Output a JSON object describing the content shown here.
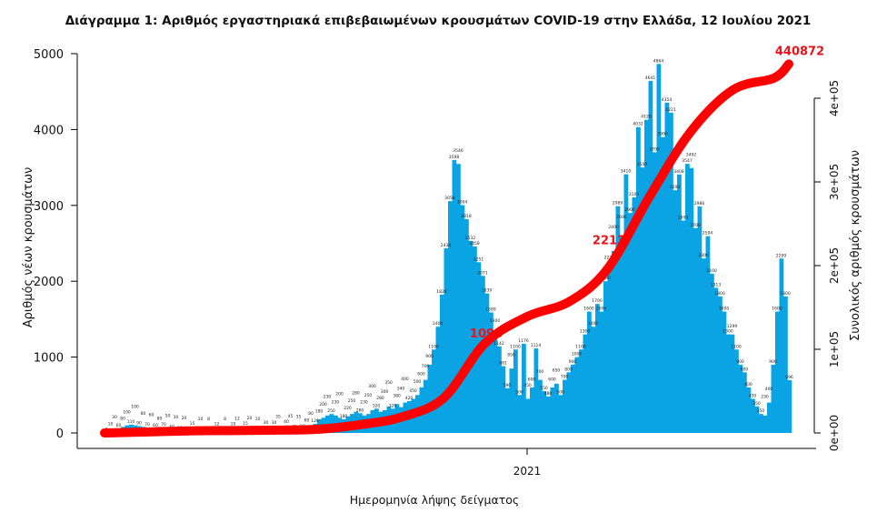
{
  "chart_data": {
    "type": "bar+line",
    "title": "Διάγραμμα 1: Αριθμός εργαστηριακά επιβεβαιωμένων κρουσμάτων COVID-19 στην Ελλάδα, 12 Ιουλίου 2021",
    "xlabel": "Ημερομηνία λήψης δείγματος",
    "ylabel": "Αριθμός νέων κρουσμάτων",
    "ylabel_right": "Συνολικός αριθμός κρουσμάτων",
    "x_start": "2020-02-26",
    "x_end": "2021-07-12",
    "x_step_days": 3,
    "x_ticks": [
      {
        "date": "2021-01-01",
        "label": "2021"
      }
    ],
    "ylim": [
      0,
      5000
    ],
    "y_ticks": [
      "0",
      "1000",
      "2000",
      "3000",
      "4000",
      "5000"
    ],
    "ylim_right": [
      0,
      400000
    ],
    "y_ticks_right": [
      "0e+00",
      "1e+05",
      "2e+05",
      "3e+05",
      "4e+05"
    ],
    "grid": false,
    "bar_color": "#0aa4e4",
    "line_color": "#ff0000",
    "bars": {
      "name": "",
      "values": [
        3,
        10,
        30,
        60,
        80,
        100,
        110,
        100,
        90,
        80,
        70,
        60,
        60,
        80,
        70,
        50,
        40,
        30,
        25,
        20,
        15,
        15,
        12,
        10,
        10,
        8,
        10,
        12,
        10,
        8,
        8,
        10,
        12,
        10,
        15,
        20,
        15,
        10,
        20,
        30,
        25,
        30,
        35,
        30,
        40,
        45,
        40,
        35,
        50,
        60,
        80,
        120,
        180,
        200,
        230,
        250,
        230,
        200,
        180,
        220,
        250,
        280,
        260,
        230,
        250,
        300,
        320,
        280,
        300,
        350,
        320,
        380,
        340,
        400,
        420,
        450,
        500,
        600,
        700,
        900,
        1100,
        1400,
        1824,
        2434,
        3056,
        3598,
        3546,
        3004,
        2818,
        2532,
        2458,
        2251,
        2071,
        1839,
        1589,
        1300,
        1142,
        881,
        590,
        850,
        1100,
        500,
        1176,
        450,
        600,
        1114,
        700,
        550,
        480,
        600,
        650,
        500,
        700,
        800,
        900,
        1000,
        1100,
        1300,
        1600,
        1400,
        1700,
        1600,
        2000,
        2274,
        2400,
        2989,
        2600,
        3410,
        2900,
        3105,
        4032,
        3500,
        4128,
        4641,
        3700,
        4864,
        3900,
        4354,
        4221,
        3200,
        3408,
        2800,
        3547,
        3492,
        2700,
        2986,
        2300,
        2594,
        2100,
        1913,
        1800,
        1600,
        1300,
        1299,
        1100,
        900,
        800,
        600,
        450,
        350,
        250,
        230,
        400,
        900,
        1600,
        2299,
        1800,
        696
      ]
    },
    "cumulative": {
      "points": [
        [
          "2020-02-26",
          0
        ],
        [
          "2020-04-01",
          1300
        ],
        [
          "2020-05-01",
          2600
        ],
        [
          "2020-06-01",
          2900
        ],
        [
          "2020-07-01",
          3400
        ],
        [
          "2020-08-01",
          4500
        ],
        [
          "2020-09-01",
          10000
        ],
        [
          "2020-10-01",
          19000
        ],
        [
          "2020-11-01",
          42000
        ],
        [
          "2020-12-01",
          107000
        ],
        [
          "2021-01-01",
          139000
        ],
        [
          "2021-02-01",
          157000
        ],
        [
          "2021-03-01",
          196000
        ],
        [
          "2021-04-01",
          283000
        ],
        [
          "2021-05-01",
          360000
        ],
        [
          "2021-06-01",
          410000
        ],
        [
          "2021-07-01",
          424000
        ],
        [
          "2021-07-12",
          440872
        ]
      ],
      "annotations": [
        {
          "date": "2020-12-10",
          "value": 109800,
          "label": "1098"
        },
        {
          "date": "2021-03-10",
          "value": 221300,
          "label": "2213"
        },
        {
          "date": "2021-07-12",
          "value": 440872,
          "label": "440872"
        }
      ]
    }
  }
}
